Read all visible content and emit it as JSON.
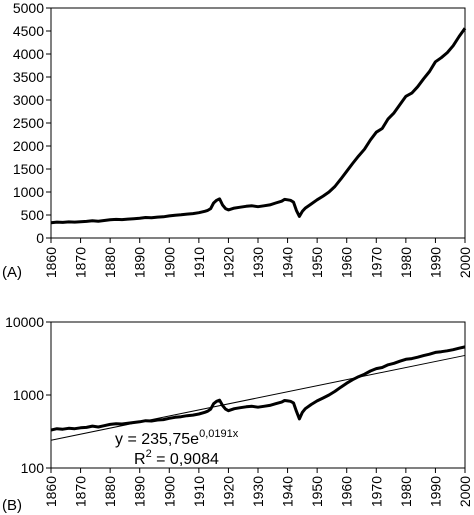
{
  "chart_data": [
    {
      "panel_label": "(A)",
      "type": "line",
      "yscale": "linear",
      "xlim": [
        1860,
        2000
      ],
      "ylim": [
        0,
        5000
      ],
      "x_ticks": [
        "1860",
        "1870",
        "1880",
        "1890",
        "1900",
        "1910",
        "1920",
        "1930",
        "1940",
        "1950",
        "1960",
        "1970",
        "1980",
        "1990",
        "2000"
      ],
      "y_ticks": [
        "0",
        "500",
        "1000",
        "1500",
        "2000",
        "2500",
        "3000",
        "3500",
        "4000",
        "4500",
        "5000"
      ],
      "grid": false,
      "series": [
        {
          "color": "#000000",
          "points": [
            [
              1860,
              330
            ],
            [
              1862,
              345
            ],
            [
              1864,
              340
            ],
            [
              1866,
              350
            ],
            [
              1868,
              345
            ],
            [
              1870,
              355
            ],
            [
              1872,
              360
            ],
            [
              1874,
              375
            ],
            [
              1876,
              365
            ],
            [
              1878,
              380
            ],
            [
              1880,
              395
            ],
            [
              1882,
              405
            ],
            [
              1884,
              400
            ],
            [
              1886,
              410
            ],
            [
              1888,
              420
            ],
            [
              1890,
              430
            ],
            [
              1892,
              445
            ],
            [
              1894,
              440
            ],
            [
              1896,
              455
            ],
            [
              1898,
              460
            ],
            [
              1900,
              480
            ],
            [
              1902,
              495
            ],
            [
              1904,
              505
            ],
            [
              1906,
              520
            ],
            [
              1908,
              530
            ],
            [
              1910,
              550
            ],
            [
              1912,
              580
            ],
            [
              1913,
              600
            ],
            [
              1914,
              640
            ],
            [
              1915,
              760
            ],
            [
              1916,
              820
            ],
            [
              1917,
              850
            ],
            [
              1918,
              720
            ],
            [
              1919,
              640
            ],
            [
              1920,
              610
            ],
            [
              1922,
              650
            ],
            [
              1924,
              670
            ],
            [
              1926,
              690
            ],
            [
              1928,
              700
            ],
            [
              1930,
              680
            ],
            [
              1932,
              700
            ],
            [
              1934,
              720
            ],
            [
              1936,
              760
            ],
            [
              1938,
              800
            ],
            [
              1939,
              840
            ],
            [
              1940,
              830
            ],
            [
              1941,
              820
            ],
            [
              1942,
              780
            ],
            [
              1943,
              600
            ],
            [
              1944,
              470
            ],
            [
              1945,
              580
            ],
            [
              1946,
              650
            ],
            [
              1948,
              740
            ],
            [
              1950,
              830
            ],
            [
              1952,
              910
            ],
            [
              1954,
              1000
            ],
            [
              1956,
              1120
            ],
            [
              1958,
              1280
            ],
            [
              1960,
              1450
            ],
            [
              1962,
              1620
            ],
            [
              1964,
              1780
            ],
            [
              1966,
              1930
            ],
            [
              1968,
              2130
            ],
            [
              1970,
              2300
            ],
            [
              1972,
              2380
            ],
            [
              1974,
              2590
            ],
            [
              1976,
              2720
            ],
            [
              1978,
              2900
            ],
            [
              1980,
              3080
            ],
            [
              1982,
              3150
            ],
            [
              1984,
              3290
            ],
            [
              1986,
              3460
            ],
            [
              1988,
              3620
            ],
            [
              1990,
              3830
            ],
            [
              1992,
              3920
            ],
            [
              1994,
              4030
            ],
            [
              1996,
              4180
            ],
            [
              1998,
              4380
            ],
            [
              2000,
              4560
            ]
          ]
        }
      ]
    },
    {
      "panel_label": "(B)",
      "type": "line",
      "yscale": "log",
      "xlim": [
        1860,
        2000
      ],
      "ylim": [
        100,
        10000
      ],
      "x_ticks": [
        "1860",
        "1870",
        "1880",
        "1890",
        "1900",
        "1910",
        "1920",
        "1930",
        "1940",
        "1950",
        "1960",
        "1970",
        "1980",
        "1990",
        "2000"
      ],
      "y_ticks": [
        "100",
        "1000",
        "10000"
      ],
      "grid": false,
      "series": [
        {
          "color": "#000000",
          "points": "same as panel A"
        },
        {
          "color": "#000000",
          "fit": {
            "a": 235.75,
            "b": 0.0191
          }
        }
      ],
      "annotations": {
        "equation_prefix": "y = 235,75e",
        "equation_exponent": "0,0191x",
        "r2_prefix": "R",
        "r2_superscript": "2",
        "r2_value": " = 0,9084"
      }
    }
  ]
}
